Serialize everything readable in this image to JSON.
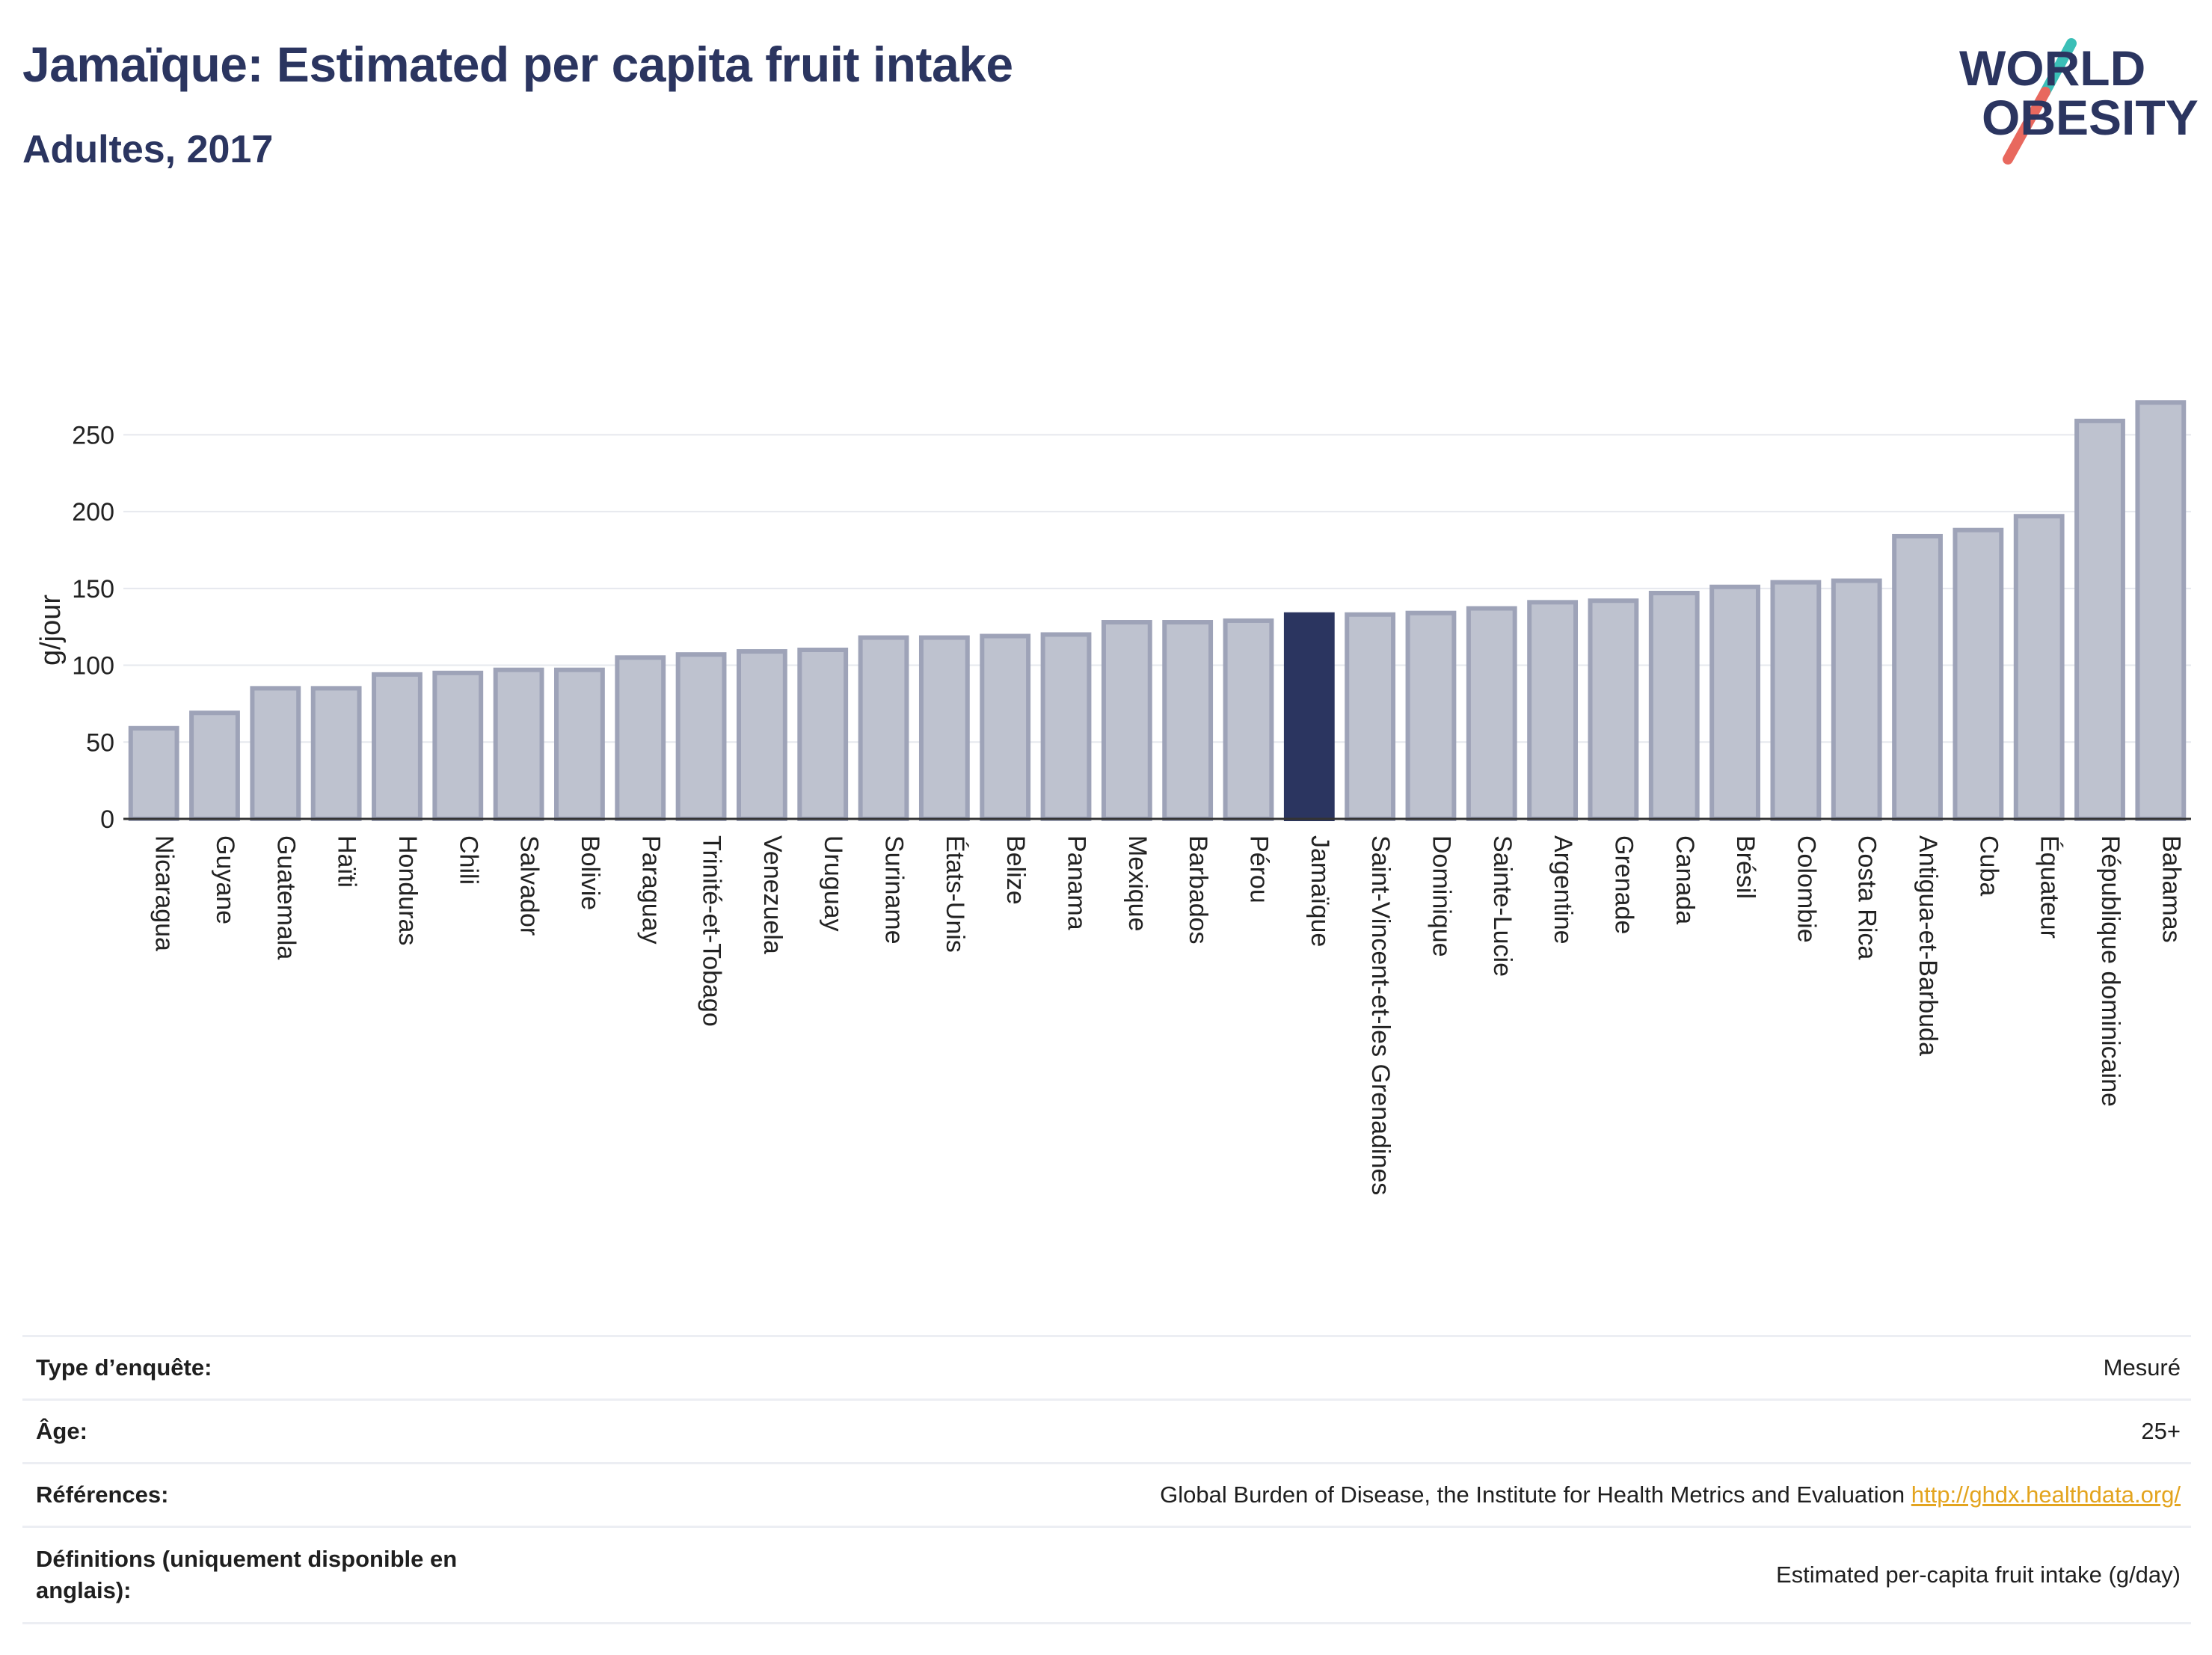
{
  "header": {
    "title": "Jamaïque: Estimated per capita fruit intake",
    "subtitle": "Adultes, 2017",
    "logo_line1": "WORLD",
    "logo_line2": "OBESITY"
  },
  "colors": {
    "bar_fill": "#bec2cf",
    "bar_stroke": "#9ea3b8",
    "highlight": "#2b3560",
    "title": "#2b3560",
    "grid": "#e6e8ee",
    "logo_teal": "#3bbfb7",
    "logo_red": "#e8685e"
  },
  "chart_data": {
    "type": "bar",
    "ylabel": "g/jour",
    "xlabel": "",
    "ylim": [
      0,
      275
    ],
    "yticks": [
      0,
      50,
      100,
      150,
      200,
      250
    ],
    "grid": true,
    "highlight_category": "Jamaïque",
    "categories": [
      "Nicaragua",
      "Guyane",
      "Guatemala",
      "Haïti",
      "Honduras",
      "Chili",
      "Salvador",
      "Bolivie",
      "Paraguay",
      "Trinité-et-Tobago",
      "Venezuela",
      "Uruguay",
      "Suriname",
      "États-Unis",
      "Belize",
      "Panama",
      "Mexique",
      "Barbados",
      "Pérou",
      "Jamaïque",
      "Saint-Vincent-et-les Grenadines",
      "Dominique",
      "Sainte-Lucie",
      "Argentine",
      "Grenade",
      "Canada",
      "Brésil",
      "Colombie",
      "Costa Rica",
      "Antigua-et-Barbuda",
      "Cuba",
      "Équateur",
      "République dominicaine",
      "Bahamas"
    ],
    "values": [
      59,
      69,
      85,
      85,
      94,
      95,
      97,
      97,
      105,
      107,
      109,
      110,
      118,
      118,
      119,
      120,
      128,
      128,
      129,
      133,
      133,
      134,
      137,
      141,
      142,
      147,
      151,
      154,
      155,
      184,
      188,
      197,
      259,
      271
    ]
  },
  "info": {
    "rows": [
      {
        "key": "Type d’enquête:",
        "value": "Mesuré"
      },
      {
        "key": "Âge:",
        "value": "25+"
      },
      {
        "key": "Références:",
        "value": "Global Burden of Disease, the Institute for Health Metrics and Evaluation",
        "link": "http://ghdx.healthdata.org/"
      },
      {
        "key": "Définitions (uniquement disponible en anglais):",
        "value": "Estimated per-capita fruit intake (g/day)"
      }
    ]
  }
}
